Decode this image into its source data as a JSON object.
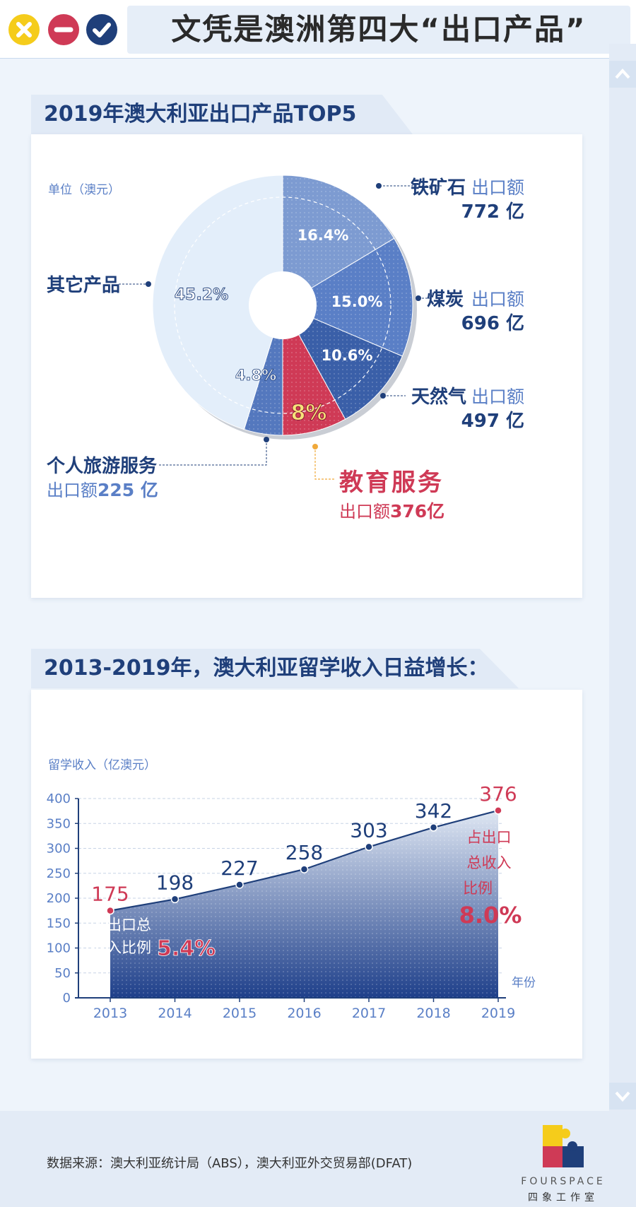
{
  "header": {
    "title": "文凭是澳洲第四大“出口产品”"
  },
  "colors": {
    "navy": "#1f3f7a",
    "red": "#cf3a56",
    "yellow": "#f5cc1b",
    "light": "#e3eefa"
  },
  "chart_data": [
    {
      "type": "pie",
      "title": "2019年澳大利亚出口产品TOP5",
      "unit_label": "单位（澳元）",
      "slices": [
        {
          "name": "铁矿石",
          "percent": "16.4%",
          "value_pct": 16.4,
          "amount_label": "出口额",
          "amount": "772 亿",
          "color": "#7d9bd1"
        },
        {
          "name": "煤炭",
          "percent": "15.0%",
          "value_pct": 15.0,
          "amount_label": "出口额",
          "amount": "696 亿",
          "color": "#5a7fc6"
        },
        {
          "name": "天然气",
          "percent": "10.6%",
          "value_pct": 10.6,
          "amount_label": "出口额",
          "amount": "497 亿",
          "color": "#3a5fa8"
        },
        {
          "name": "教育服务",
          "percent": "8%",
          "value_pct": 8.0,
          "amount_label": "出口额",
          "amount": "376亿",
          "color": "#cf3a56"
        },
        {
          "name": "个人旅游服务",
          "percent": "4.8%",
          "value_pct": 4.8,
          "amount_label": "出口额",
          "amount": "225 亿",
          "color": "#5478be"
        },
        {
          "name": "其它产品",
          "percent": "45.2%",
          "value_pct": 45.2,
          "color": "#e3eefa"
        }
      ]
    },
    {
      "type": "area",
      "title": "2013-2019年，澳大利亚留学收入日益增长：",
      "ylabel": "留学收入（亿澳元）",
      "xlabel": "年份",
      "ylim": [
        0,
        400
      ],
      "yticks": [
        "0",
        "50",
        "100",
        "150",
        "200",
        "250",
        "300",
        "350",
        "400"
      ],
      "categories": [
        "2013",
        "2014",
        "2015",
        "2016",
        "2017",
        "2018",
        "2019"
      ],
      "values": [
        175,
        198,
        227,
        258,
        303,
        342,
        376
      ],
      "value_labels": [
        "175",
        "198",
        "227",
        "258",
        "303",
        "342",
        "376"
      ],
      "annotations": {
        "start_line1": "占出口总",
        "start_line2": "收入比例",
        "start_value": "5.4%",
        "end_line1": "占出口",
        "end_line2": "总收入",
        "end_line3": "比例",
        "end_value": "8.0%"
      }
    }
  ],
  "footer": {
    "source": "数据来源：澳大利亚统计局（ABS），澳大利亚外交贸易部(DFAT)",
    "logo_text": "FOURSPACE",
    "logo_sub": "四象工作室"
  }
}
